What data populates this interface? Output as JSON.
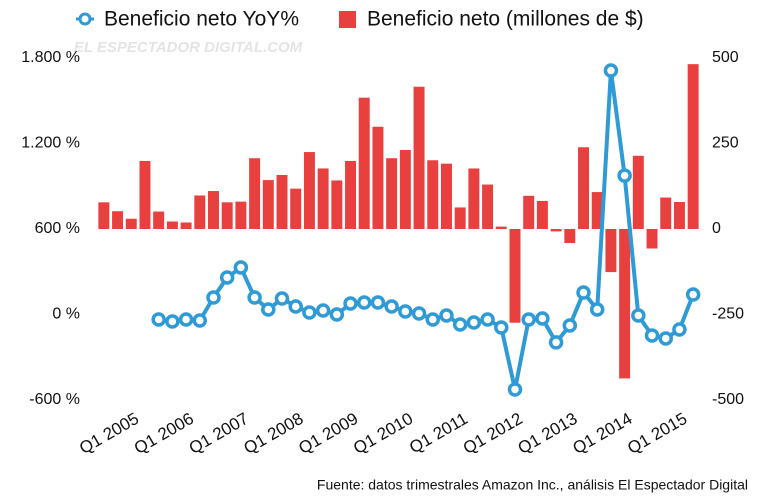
{
  "chart_data": {
    "type": "bar-line",
    "watermark": "EL ESPECTADOR DIGITAL.COM",
    "source": "Fuente: datos trimestrales Amazon Inc., análisis El Espectador Digital",
    "categories": [
      "Q1 2005",
      null,
      null,
      null,
      "Q1 2006",
      null,
      null,
      null,
      "Q1 2007",
      null,
      null,
      null,
      "Q1 2008",
      null,
      null,
      null,
      "Q1 2009",
      null,
      null,
      null,
      "Q1 2010",
      null,
      null,
      null,
      "Q1 2011",
      null,
      null,
      null,
      "Q1 2012",
      null,
      null,
      null,
      "Q1 2013",
      null,
      null,
      null,
      "Q1 2014",
      null,
      null,
      null,
      "Q1 2015",
      null,
      null,
      null
    ],
    "series": [
      {
        "name": "Beneficio neto YoY%",
        "type": "line",
        "axis": "y",
        "color": "#2f9bd6",
        "values": [
          null,
          null,
          null,
          null,
          -35,
          -49,
          -35,
          -42,
          119,
          260,
          330,
          119,
          35,
          112,
          56,
          14,
          28,
          0,
          77,
          84,
          84,
          56,
          21,
          7,
          -35,
          -7,
          -70,
          -56,
          -35,
          -91,
          -526,
          -35,
          -28,
          -196,
          -77,
          154,
          35,
          1712,
          975,
          -7,
          -147,
          -168,
          -105,
          140
        ]
      },
      {
        "name": "Beneficio neto (millones de $)",
        "type": "bar",
        "axis": "y2",
        "color": "#e8403e",
        "values": [
          78,
          52,
          30,
          199,
          51,
          22,
          19,
          98,
          111,
          78,
          80,
          207,
          143,
          158,
          118,
          225,
          177,
          142,
          199,
          384,
          299,
          207,
          231,
          416,
          201,
          191,
          63,
          177,
          130,
          7,
          -274,
          97,
          82,
          -7,
          -41,
          239,
          108,
          -126,
          -437,
          214,
          -57,
          92,
          79,
          482
        ]
      }
    ],
    "ylim": [
      -600,
      1800
    ],
    "yticks": [
      {
        "value": -600,
        "label": "-600 %"
      },
      {
        "value": 0,
        "label": "0 %"
      },
      {
        "value": 600,
        "label": "600 %"
      },
      {
        "value": 1200,
        "label": "1.200 %"
      },
      {
        "value": 1800,
        "label": "1.800 %"
      }
    ],
    "y2lim": [
      -500,
      500
    ],
    "y2ticks": [
      -500,
      -250,
      0,
      250,
      500
    ]
  }
}
